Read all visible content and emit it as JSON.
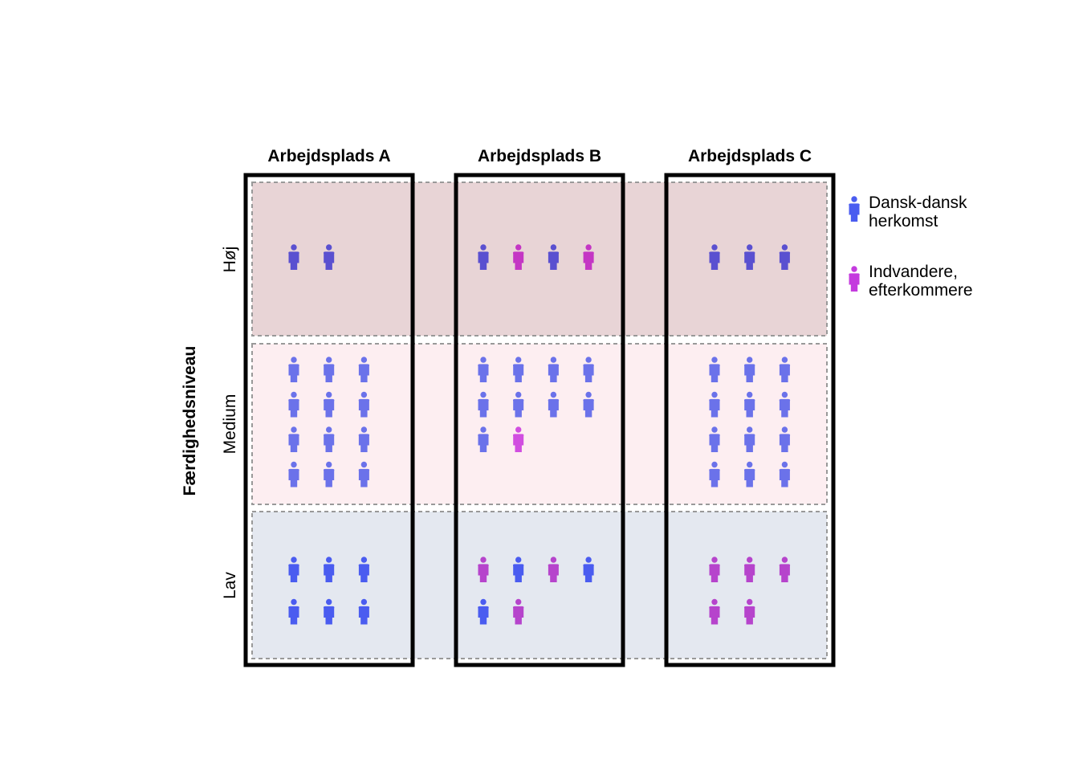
{
  "chart_data": {
    "type": "pictogram",
    "y_axis_label": "Færdighedsniveau",
    "columns": [
      "Arbejdsplads A",
      "Arbejdsplads B",
      "Arbejdsplads C"
    ],
    "rows": [
      "Høj",
      "Medium",
      "Lav"
    ],
    "legend": [
      {
        "key": "danish",
        "label_lines": [
          "Dansk-dansk",
          "herkomst"
        ],
        "color": "#4a5cf0"
      },
      {
        "key": "immigrant",
        "label_lines": [
          "Indvandere,",
          "efterkommere"
        ],
        "color": "#c43bde"
      }
    ],
    "band_colors": {
      "Høj": "#e8d4d6",
      "Medium": "#fdeef1",
      "Lav": "#e4e8f0"
    },
    "icon_colors": {
      "Høj": {
        "danish": "#5a50d0",
        "immigrant": "#c436c4"
      },
      "Medium": {
        "danish": "#6b72ea",
        "immigrant": "#d14ee0"
      },
      "Lav": {
        "danish": "#4a5cf0",
        "immigrant": "#b644cc"
      }
    },
    "cells": {
      "Arbejdsplads A": {
        "Høj": [
          "danish",
          "danish"
        ],
        "Medium": [
          "danish",
          "danish",
          "danish",
          "danish",
          "danish",
          "danish",
          "danish",
          "danish",
          "danish",
          "danish",
          "danish",
          "danish"
        ],
        "Lav": [
          "danish",
          "danish",
          "danish",
          "danish",
          "danish",
          "danish"
        ]
      },
      "Arbejdsplads B": {
        "Høj": [
          "danish",
          "immigrant",
          "danish",
          "immigrant"
        ],
        "Medium": [
          "danish",
          "danish",
          "danish",
          "danish",
          "danish",
          "danish",
          "danish",
          "danish",
          "danish",
          "immigrant"
        ],
        "Lav": [
          "immigrant",
          "danish",
          "immigrant",
          "danish",
          "danish",
          "immigrant"
        ]
      },
      "Arbejdsplads C": {
        "Høj": [
          "danish",
          "danish",
          "danish"
        ],
        "Medium": [
          "danish",
          "danish",
          "danish",
          "danish",
          "danish",
          "danish",
          "danish",
          "danish",
          "danish",
          "danish",
          "danish",
          "danish"
        ],
        "Lav": [
          "immigrant",
          "immigrant",
          "immigrant",
          "immigrant",
          "immigrant"
        ]
      }
    },
    "counts": {
      "Arbejdsplads A": {
        "Høj": {
          "danish": 2,
          "immigrant": 0
        },
        "Medium": {
          "danish": 12,
          "immigrant": 0
        },
        "Lav": {
          "danish": 6,
          "immigrant": 0
        }
      },
      "Arbejdsplads B": {
        "Høj": {
          "danish": 2,
          "immigrant": 2
        },
        "Medium": {
          "danish": 9,
          "immigrant": 1
        },
        "Lav": {
          "danish": 3,
          "immigrant": 3
        }
      },
      "Arbejdsplads C": {
        "Høj": {
          "danish": 3,
          "immigrant": 0
        },
        "Medium": {
          "danish": 12,
          "immigrant": 0
        },
        "Lav": {
          "danish": 0,
          "immigrant": 5
        }
      }
    }
  }
}
